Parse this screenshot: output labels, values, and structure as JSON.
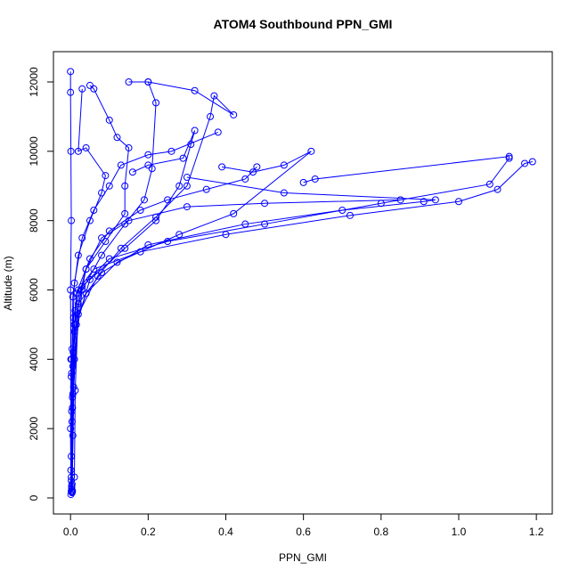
{
  "chart_data": {
    "type": "line",
    "title": "ATOM4 Southbound PPN_GMI",
    "x_label": "PPN_GMI",
    "y_label": "Altitude (m)",
    "color": "#0000ff",
    "xlim": [
      -0.044,
      1.241
    ],
    "ylim": [
      -463,
      12874
    ],
    "xticks": [
      {
        "value": 0,
        "label": "0.0"
      },
      0.2,
      0.4,
      0.6,
      0.8,
      {
        "value": 1,
        "label": "1.0"
      },
      1.2
    ],
    "yticks": [
      0,
      2000,
      4000,
      6000,
      8000,
      10000,
      12000
    ],
    "series": [
      {
        "x": [
          0.004,
          0.002,
          0.005,
          0.003,
          0.008,
          0.02,
          0.06,
          0.18,
          0.4,
          0.72,
          1.0,
          1.1,
          1.17,
          1.19
        ],
        "y": [
          180,
          1200,
          2600,
          4000,
          5200,
          6000,
          6600,
          7100,
          7600,
          8150,
          8550,
          8900,
          9650,
          9700
        ]
      },
      {
        "x": [
          0.003,
          0.006,
          0.002,
          0.01,
          0.03,
          0.1,
          0.25,
          0.5,
          0.8,
          1.08,
          1.13,
          1.13,
          0.63,
          0.6
        ],
        "y": [
          300,
          1800,
          3500,
          5000,
          6100,
          6900,
          7400,
          7900,
          8500,
          9050,
          9800,
          9850,
          9200,
          9100
        ]
      },
      {
        "x": [
          0.002,
          0.004,
          0.007,
          0.02,
          0.08,
          0.2,
          0.45,
          0.7,
          0.91,
          0.94,
          0.55,
          0.3
        ],
        "y": [
          500,
          2200,
          4200,
          5600,
          6500,
          7300,
          7900,
          8300,
          8550,
          8600,
          8800,
          9250
        ]
      },
      {
        "x": [
          0.005,
          0.003,
          0.01,
          0.04,
          0.12,
          0.28,
          0.42,
          0.62,
          0.55,
          0.47,
          0.39
        ],
        "y": [
          200,
          2500,
          4800,
          5900,
          6800,
          7600,
          8200,
          10000,
          9600,
          9400,
          9550
        ]
      },
      {
        "x": [
          0.004,
          0.006,
          0.015,
          0.05,
          0.14,
          0.22,
          0.28,
          0.31,
          0.32,
          0.29,
          0.2,
          0.16
        ],
        "y": [
          400,
          3000,
          5000,
          6300,
          7200,
          8000,
          9000,
          10200,
          10600,
          9800,
          9600,
          9400
        ]
      },
      {
        "x": [
          0.003,
          0.008,
          0.02,
          0.07,
          0.13,
          0.22,
          0.3,
          0.36,
          0.37,
          0.42,
          0.32,
          0.2
        ],
        "y": [
          250,
          3200,
          5300,
          6400,
          7200,
          8100,
          9000,
          11000,
          11600,
          11050,
          11750,
          12000
        ]
      },
      {
        "x": [
          0.002,
          0.005,
          0.012,
          0.04,
          0.09,
          0.14,
          0.14,
          0.15,
          0.12,
          0.1,
          0.06,
          0.05
        ],
        "y": [
          600,
          2900,
          5400,
          6600,
          7400,
          8200,
          9000,
          10100,
          10400,
          10900,
          11800,
          11900
        ]
      },
      {
        "x": [
          0.004,
          0.01,
          0.03,
          0.08,
          0.14,
          0.19,
          0.21,
          0.22,
          0.2,
          0.15
        ],
        "y": [
          150,
          4000,
          6000,
          7000,
          7900,
          8600,
          9500,
          11400,
          12000,
          12000
        ]
      },
      {
        "x": [
          0.001,
          0.003,
          0.006,
          0.02,
          0.05,
          0.08,
          0.09,
          0.04,
          0.02,
          0.03
        ],
        "y": [
          800,
          3600,
          5800,
          7000,
          8000,
          8800,
          9300,
          10100,
          10000,
          11800
        ]
      },
      {
        "x": [
          0.002,
          0.004,
          0.01,
          0.03,
          0.06,
          0.1,
          0.13,
          0.2,
          0.26,
          0.38
        ],
        "y": [
          200,
          4300,
          6200,
          7500,
          8300,
          9000,
          9600,
          9900,
          10000,
          10550
        ]
      },
      {
        "x": [
          0.003,
          0.006,
          0.015,
          0.05,
          0.1,
          0.18,
          0.25,
          0.35,
          0.45,
          0.48
        ],
        "y": [
          350,
          3800,
          5900,
          6900,
          7700,
          8300,
          8600,
          8900,
          9200,
          9550
        ]
      },
      {
        "x": [
          0.001,
          0,
          0.001,
          0,
          0.002,
          0.001,
          0,
          0
        ],
        "y": [
          100,
          2000,
          4000,
          6000,
          8000,
          10000,
          11700,
          12300
        ]
      },
      {
        "x": [
          0.01,
          0.012,
          0.02,
          0.04,
          0.08,
          0.15,
          0.3,
          0.5,
          0.85
        ],
        "y": [
          600,
          3100,
          5500,
          6600,
          7500,
          8000,
          8400,
          8500,
          8600
        ]
      }
    ]
  }
}
